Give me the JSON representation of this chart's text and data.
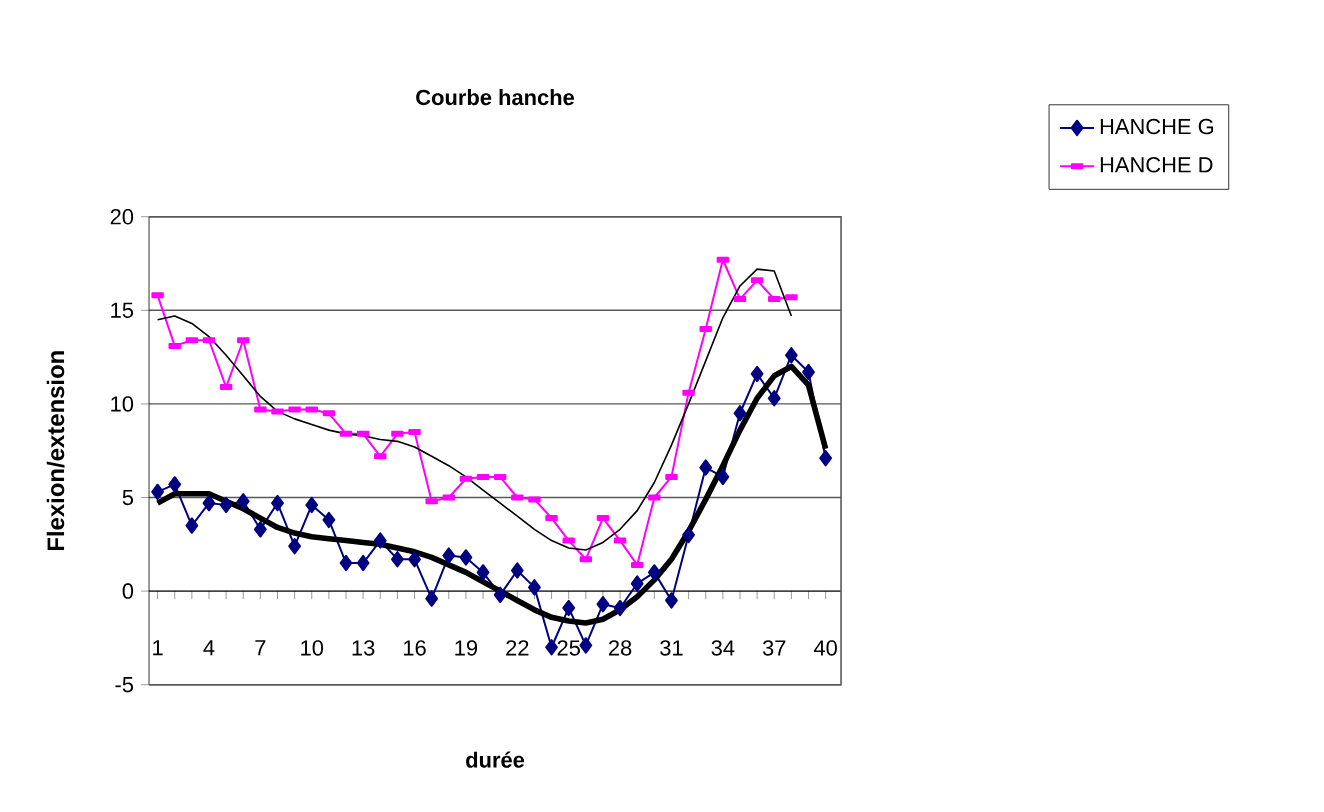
{
  "chart_data": {
    "type": "line",
    "title": "Courbe hanche",
    "xlabel": "durée",
    "ylabel": "Flexion/extension",
    "categories": [
      "1",
      null,
      null,
      "4",
      null,
      null,
      "7",
      null,
      null,
      "10",
      null,
      null,
      "13",
      null,
      null,
      "16",
      null,
      null,
      "19",
      null,
      null,
      "22",
      null,
      null,
      "25",
      null,
      null,
      "28",
      null,
      null,
      "31",
      null,
      null,
      "34",
      null,
      null,
      "37",
      null,
      null,
      "40"
    ],
    "series": [
      {
        "name": "HANCHE G",
        "color": "#000080",
        "marker": "diamond",
        "values": [
          5.3,
          5.7,
          3.5,
          4.7,
          4.6,
          4.8,
          3.3,
          4.7,
          2.4,
          4.6,
          3.8,
          1.5,
          1.5,
          2.7,
          1.7,
          1.7,
          -0.4,
          1.9,
          1.8,
          1.0,
          -0.2,
          1.1,
          0.2,
          -3.0,
          -0.9,
          -2.9,
          -0.7,
          -0.9,
          0.4,
          1.0,
          -0.5,
          3.0,
          6.6,
          6.1,
          9.5,
          11.6,
          10.3,
          12.6,
          11.7,
          7.1
        ]
      },
      {
        "name": "HANCHE D",
        "color": "#ff00ff",
        "marker": "square",
        "values": [
          15.8,
          13.1,
          13.4,
          13.4,
          10.9,
          13.4,
          9.7,
          9.6,
          9.7,
          9.7,
          9.5,
          8.4,
          8.4,
          7.2,
          8.4,
          8.5,
          4.8,
          5.0,
          6.0,
          6.1,
          6.1,
          5.0,
          4.9,
          3.9,
          2.7,
          1.7,
          3.9,
          2.7,
          1.4,
          5.0,
          6.1,
          10.6,
          14.0,
          17.7,
          15.6,
          16.6,
          15.6,
          15.7,
          null,
          null
        ]
      },
      {
        "type": "line",
        "color": "#000000",
        "marker": "none",
        "values": [
          4.7,
          5.2,
          5.2,
          5.2,
          4.8,
          4.4,
          3.9,
          3.4,
          3.1,
          2.9,
          2.8,
          2.7,
          2.6,
          2.5,
          2.3,
          2.1,
          1.8,
          1.4,
          1.0,
          0.5,
          0.0,
          -0.5,
          -1.0,
          -1.4,
          -1.6,
          -1.7,
          -1.5,
          -1.0,
          -0.3,
          0.6,
          1.7,
          3.2,
          4.9,
          6.7,
          8.6,
          10.3,
          11.5,
          12.0,
          11.0,
          7.6
        ]
      },
      {
        "type": "line",
        "color": "#000000",
        "marker": "none",
        "values": [
          14.5,
          14.7,
          14.3,
          13.6,
          12.6,
          11.5,
          10.4,
          9.6,
          9.2,
          8.9,
          8.6,
          8.4,
          8.3,
          8.1,
          8.0,
          7.7,
          7.2,
          6.7,
          6.1,
          5.4,
          4.7,
          4.0,
          3.3,
          2.7,
          2.3,
          2.2,
          2.6,
          3.3,
          4.3,
          5.8,
          7.8,
          10.0,
          12.3,
          14.6,
          16.3,
          17.2,
          17.1,
          14.7,
          null,
          null
        ]
      }
    ],
    "ylim": [
      -5,
      20
    ],
    "yticks": [
      -5,
      0,
      5,
      10,
      15,
      20
    ],
    "grid": "y",
    "legend": "top right"
  }
}
